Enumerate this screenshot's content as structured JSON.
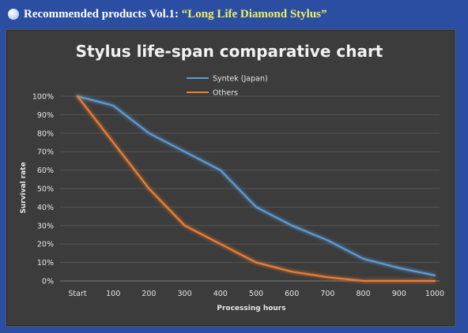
{
  "header": {
    "prefix": "Recommended products Vol.1: ",
    "highlight": "“Long Life Diamond Stylus”"
  },
  "colors": {
    "page_background": "#2b4ea2",
    "chart_background": "#3c3c3c",
    "highlight_text": "#f0f060",
    "series_syntek": "#5b9bd5",
    "series_others": "#ed7d31"
  },
  "chart_data": {
    "type": "line",
    "title": "Stylus life-span comparative chart",
    "xlabel": "Processing hours",
    "ylabel": "Survival rate",
    "categories": [
      "Start",
      "100",
      "200",
      "300",
      "400",
      "500",
      "600",
      "700",
      "800",
      "900",
      "1000"
    ],
    "y_ticks": [
      "0%",
      "10%",
      "20%",
      "30%",
      "40%",
      "50%",
      "60%",
      "70%",
      "80%",
      "90%",
      "100%"
    ],
    "ylim": [
      0,
      100
    ],
    "y_unit": "%",
    "grid": true,
    "legend_position": "top",
    "series": [
      {
        "name": "Syntek (Japan)",
        "color": "#5b9bd5",
        "values": [
          100,
          95,
          80,
          70,
          60,
          40,
          30,
          22,
          12,
          7,
          3
        ]
      },
      {
        "name": "Others",
        "color": "#ed7d31",
        "values": [
          100,
          75,
          50,
          30,
          20,
          10,
          5,
          2,
          0,
          0,
          0
        ]
      }
    ]
  }
}
